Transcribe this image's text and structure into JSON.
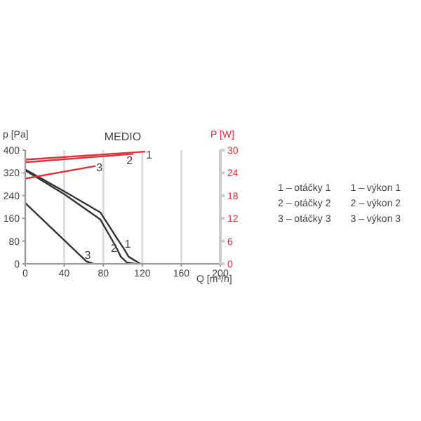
{
  "chart_data": {
    "type": "line",
    "title": "MEDIO",
    "xlabel": "Q [m³/h]",
    "ylabel": "p [Pa]",
    "y2label": "P [W]",
    "xlim": [
      0,
      200
    ],
    "xticks": [
      0,
      40,
      80,
      120,
      160,
      200
    ],
    "ylim": [
      0,
      400
    ],
    "yticks": [
      0,
      80,
      160,
      240,
      320,
      400
    ],
    "y2lim": [
      0,
      30
    ],
    "y2ticks": [
      0,
      6,
      12,
      18,
      24,
      30
    ],
    "grid": "x",
    "marker": "none",
    "line_style": "solid",
    "series": [
      {
        "color": "#333333",
        "x": [
          0,
          40,
          77,
          94,
          101,
          106,
          118
        ],
        "values": [
          332,
          255,
          181,
          90,
          54,
          25,
          0
        ]
      },
      {
        "color": "#333333",
        "x": [
          0,
          40,
          77,
          92,
          98,
          104,
          113
        ],
        "values": [
          329,
          245,
          156,
          66,
          25,
          5,
          0
        ]
      },
      {
        "color": "#333333",
        "x": [
          0,
          63,
          70
        ],
        "values": [
          214,
          8,
          0
        ]
      },
      {
        "color": "#e0303a",
        "axis": "y2",
        "x": [
          0,
          123
        ],
        "values": [
          27.5,
          29.6
        ]
      },
      {
        "color": "#e0303a",
        "axis": "y2",
        "x": [
          0,
          111
        ],
        "values": [
          26.8,
          29.0
        ]
      },
      {
        "color": "#e0303a",
        "axis": "y2",
        "x": [
          0,
          72
        ],
        "values": [
          22.5,
          25.8
        ]
      }
    ],
    "annotations": [
      {
        "text": "1",
        "x": 105,
        "y": 72
      },
      {
        "text": "2",
        "x": 91,
        "y": 55
      },
      {
        "text": "3",
        "x": 64,
        "y": 32
      },
      {
        "text": "1",
        "x": 127,
        "y": 384
      },
      {
        "text": "2",
        "x": 107,
        "y": 365
      },
      {
        "text": "3",
        "x": 76,
        "y": 341
      },
      "1 – otáčky 1",
      "2 – otáčky 2",
      "3 – otáčky 3",
      "1 – výkon 1",
      "2 – výkon 2",
      "3 – výkon 3"
    ]
  }
}
